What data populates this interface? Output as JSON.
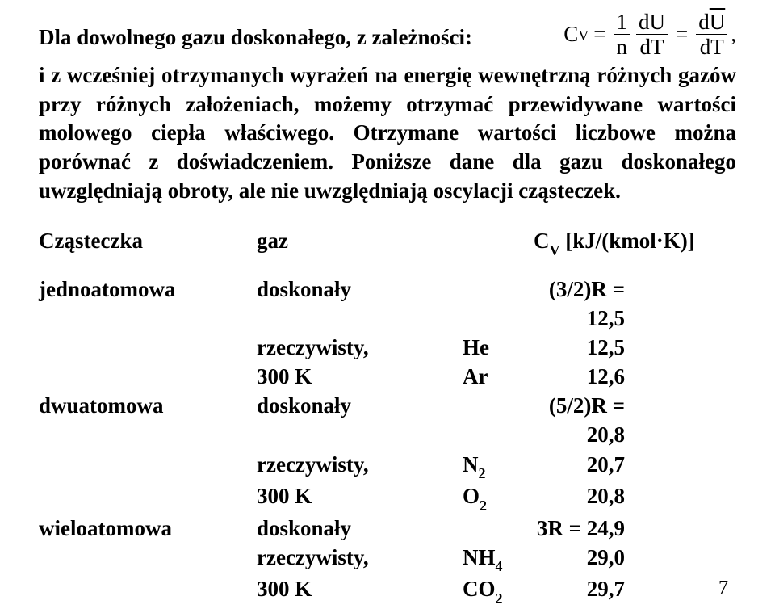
{
  "line1_lead": "Dla dowolnego gazu doskonałego, z zależności:",
  "equation": {
    "lhs_symbol": "C",
    "lhs_sub": "V",
    "eq": "=",
    "frac1_num": "1",
    "frac1_den": "n",
    "frac2_num": "dU",
    "frac2_den": "dT",
    "frac3_num": "U",
    "frac3_num_prefix": "d",
    "frac3_den": "dT",
    "trail": ","
  },
  "body_para": "i z wcześniej otrzymanych wyrażeń na energię wewnętrzną różnych gazów przy różnych założeniach, możemy otrzymać przewidywane wartości molowego ciepła właściwego. Otrzymane wartości liczbowe można porównać z doświadczeniem. Poniższe dane dla gazu doskonałego uwzględniają obroty, ale nie uwzględniają oscylacji cząsteczek.",
  "table": {
    "header": {
      "c1": "Cząsteczka",
      "c2": "gaz",
      "c3": "C",
      "c3_sub": "V",
      "c3_rest": " [kJ/(kmol·K)]"
    },
    "rows": [
      {
        "c1": "jednoatomowa",
        "c2": "doskonały",
        "c2b": "",
        "c3": "(3/2)R = 12,5"
      },
      {
        "c1": "",
        "c2": "rzeczywisty,",
        "c2b": "He",
        "c3": "12,5"
      },
      {
        "c1": "",
        "c2": "300 K",
        "c2b": "Ar",
        "c3": "12,6"
      },
      {
        "c1": "dwuatomowa",
        "c2": "doskonały",
        "c2b": "",
        "c3": "(5/2)R = 20,8"
      },
      {
        "c1": "",
        "c2": "rzeczywisty,",
        "c2b": "N",
        "c2b_sub": "2",
        "c3": "20,7"
      },
      {
        "c1": "",
        "c2": "300 K",
        "c2b": "O",
        "c2b_sub": "2",
        "c3": "20,8"
      },
      {
        "c1": "wieloatomowa",
        "c2": "doskonały",
        "c2b": "",
        "c3": "3R = 24,9"
      },
      {
        "c1": "",
        "c2": "rzeczywisty,",
        "c2b": "NH",
        "c2b_sub": "4",
        "c3": "29,0"
      },
      {
        "c1": "",
        "c2": "300 K",
        "c2b": "CO",
        "c2b_sub": "2",
        "c3": "29,7"
      }
    ]
  },
  "page_number": "7",
  "colors": {
    "text": "#000000",
    "background": "#ffffff"
  },
  "font": {
    "family": "Times New Roman",
    "body_size_pt": 20,
    "weight": "bold"
  }
}
